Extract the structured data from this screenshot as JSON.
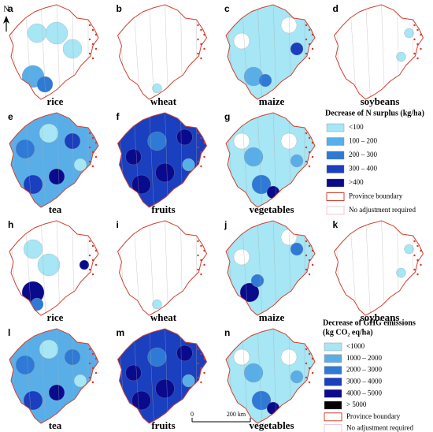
{
  "north": "N",
  "panels": [
    {
      "letter": "a",
      "label": "rice"
    },
    {
      "letter": "b",
      "label": "wheat"
    },
    {
      "letter": "c",
      "label": "maize"
    },
    {
      "letter": "d",
      "label": "soybeans"
    },
    {
      "letter": "e",
      "label": "tea"
    },
    {
      "letter": "f",
      "label": "fruits"
    },
    {
      "letter": "g",
      "label": "vegetables"
    },
    {
      "letter": "h",
      "label": "rice"
    },
    {
      "letter": "i",
      "label": "wheat"
    },
    {
      "letter": "j",
      "label": "maize"
    },
    {
      "letter": "k",
      "label": "soybeans"
    },
    {
      "letter": "l",
      "label": "tea"
    },
    {
      "letter": "m",
      "label": "fruits"
    },
    {
      "letter": "n",
      "label": "vegetables"
    }
  ],
  "legend_n": {
    "title": "Decrease of N surplus (kg/ha)",
    "items": [
      "<100",
      "100 – 200",
      "200 – 300",
      "300 – 400",
      ">400",
      "Province boundary",
      "No adjustment required"
    ]
  },
  "legend_ghg": {
    "title": [
      "Decrease of GHG emissions",
      "(kg CO₂ eq/ha)"
    ],
    "items": [
      "<1000",
      "1000 – 2000",
      "2000 – 3000",
      "3000 – 4000",
      "4000 – 5000",
      "> 5000",
      "Province boundary",
      "No adjustment required"
    ]
  },
  "scale": {
    "start": "0",
    "end": "200 km"
  }
}
